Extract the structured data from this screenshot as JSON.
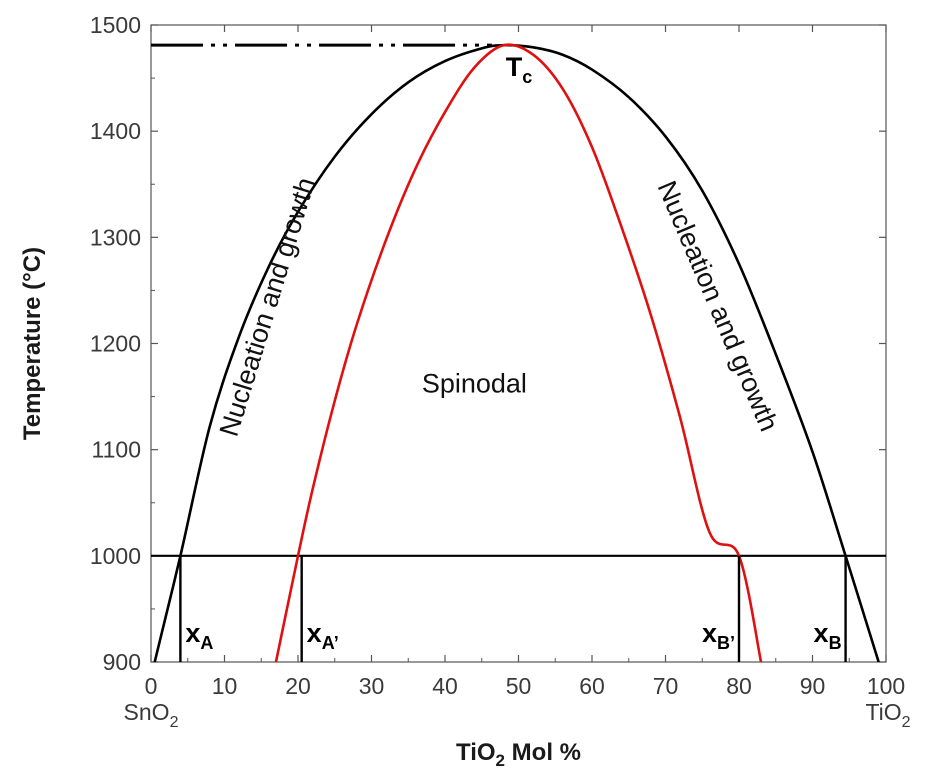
{
  "chart_data": {
    "type": "line",
    "title": "",
    "xlabel": "TiO",
    "xlabel_sub": "2",
    "xlabel_suffix": " Mol %",
    "ylabel": "Temperature (°C)",
    "xlim": [
      0,
      100
    ],
    "ylim": [
      900,
      1500
    ],
    "x_ticks": [
      "0",
      "10",
      "20",
      "30",
      "40",
      "50",
      "60",
      "70",
      "80",
      "90",
      "100"
    ],
    "y_ticks": [
      "900",
      "1000",
      "1100",
      "1200",
      "1300",
      "1400",
      "1500"
    ],
    "x_end_labels": {
      "left": {
        "base": "SnO",
        "sub": "2"
      },
      "right": {
        "base": "TiO",
        "sub": "2"
      }
    },
    "grid": false,
    "series": [
      {
        "name": "",
        "role": "binodal",
        "color": "#000000",
        "x": [
          0.5,
          4,
          8,
          12,
          16,
          20,
          25,
          30,
          35,
          40,
          45,
          48,
          52,
          56,
          60,
          65,
          70,
          75,
          80,
          85,
          90,
          94.5,
          99
        ],
        "y": [
          900,
          1000,
          1122,
          1207,
          1272,
          1324,
          1376,
          1416,
          1446,
          1466,
          1478,
          1481,
          1479,
          1472,
          1458,
          1432,
          1395,
          1344,
          1275,
          1190,
          1098,
          1000,
          900
        ]
      },
      {
        "name": "",
        "role": "spinodal",
        "color": "#e01010",
        "x": [
          17,
          20,
          22,
          25,
          28,
          32,
          36,
          40,
          44,
          48,
          52,
          56,
          60,
          64,
          68,
          72,
          76,
          80,
          83
        ],
        "y": [
          900,
          1000,
          1063,
          1146,
          1218,
          1298,
          1365,
          1418,
          1460,
          1481,
          1472,
          1440,
          1385,
          1310,
          1227,
          1130,
          1022,
          1000,
          900
        ]
      }
    ],
    "critical_point": {
      "x": 48,
      "y": 1481,
      "label": "T",
      "sub": "c"
    },
    "dashed_line": {
      "x_start": 0,
      "x_end": 48,
      "y": 1481,
      "style": "dash-dot-dot"
    },
    "isotherm": {
      "y": 1000,
      "x_start": 0,
      "x_end": 100
    },
    "markers": [
      {
        "x": 4,
        "label": "x",
        "sub": "A"
      },
      {
        "x": 20.5,
        "label": "x",
        "sub": "A’"
      },
      {
        "x": 80,
        "label": "x",
        "sub": "B’"
      },
      {
        "x": 94.5,
        "label": "x",
        "sub": "B"
      }
    ],
    "annotations": [
      {
        "text": "Nucleation and growth",
        "x": 17,
        "y": 1232,
        "rotate": -73
      },
      {
        "text": "Spinodal",
        "x": 44,
        "y": 1154,
        "rotate": 0
      },
      {
        "text": "Nucleation and growth",
        "x": 76,
        "y": 1232,
        "rotate": 67
      }
    ]
  }
}
